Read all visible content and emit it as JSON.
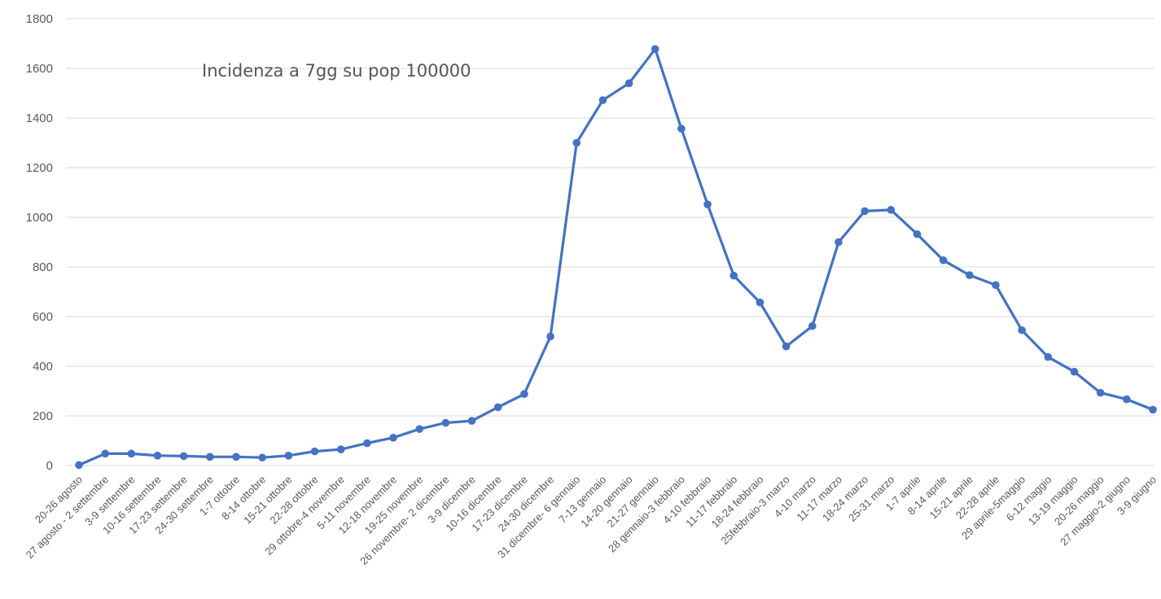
{
  "chart_data": {
    "type": "line",
    "title": "Incidenza a 7gg su pop 100000",
    "xlabel": "",
    "ylabel": "",
    "ylim": [
      0,
      1800
    ],
    "yticks": [
      0,
      200,
      400,
      600,
      800,
      1000,
      1200,
      1400,
      1600,
      1800
    ],
    "grid": true,
    "legend": "none",
    "color": "#4472c4",
    "categories": [
      "20-26 agosto",
      "27 agosto - 2 settembre",
      "3-9 settembre",
      "10-16 settembre",
      "17-23 settembre",
      "24-30 settembre",
      "1-7 ottobre",
      "8-14 ottobre",
      "15-21 ottobre",
      "22-28 ottobre",
      "29 ottobre-4 novembre",
      "5-11 novembre",
      "12-18 novembre",
      "19-25 novembre",
      "26 novembre- 2 dicembre",
      "3-9 dicembre",
      "10-16 dicembre",
      "17-23 dicembre",
      "24-30 dicembre",
      "31 dicembre- 6 gennaio",
      "7-13 gennaio",
      "14-20 gennaio",
      "21-27 gennaio",
      "28 gennaio-3 febbraio",
      "4-10 febbraio",
      "11-17 febbraio",
      "18-24 febbraio",
      "25febbraio-3 marzo",
      "4-10 marzo",
      "11-17 marzo",
      "18-24 marzo",
      "25-31 marzo",
      "1-7 aprile",
      "8-14 aprile",
      "15-21 aprile",
      "22-28 aprile",
      "29 aprile-5maggio",
      "6-12 maggio",
      "13-19 maggio",
      "20-26 maggio",
      "27 maggio-2 giugno",
      "3-9 giugno"
    ],
    "series": [
      {
        "values": [
          2,
          48,
          48,
          40,
          38,
          35,
          35,
          32,
          40,
          57,
          65,
          90,
          112,
          147,
          172,
          180,
          235,
          288,
          520,
          1300,
          1472,
          1540,
          1678,
          1357,
          1052,
          765,
          657,
          480,
          562,
          900,
          1025,
          1030,
          932,
          827,
          767,
          727,
          545,
          437,
          378,
          293,
          267,
          225
        ]
      }
    ]
  }
}
